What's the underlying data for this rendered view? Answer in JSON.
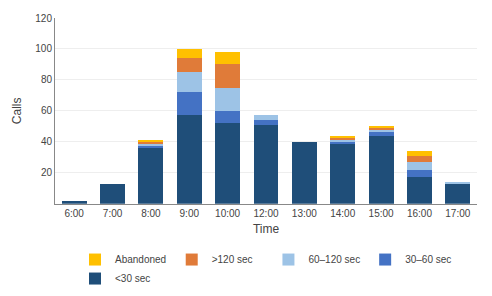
{
  "chart_data": {
    "type": "bar",
    "stacked": true,
    "xlabel": "Time",
    "ylabel": "Calls",
    "categories": [
      "6:00",
      "7:00",
      "8:00",
      "9:00",
      "10:00",
      "12:00",
      "13:00",
      "14:00",
      "15:00",
      "16:00",
      "17:00"
    ],
    "series": [
      {
        "name": "<30 sec",
        "color": "#1f4e79",
        "values": [
          2,
          13,
          36,
          57,
          52,
          51,
          40,
          39,
          44,
          17,
          13
        ]
      },
      {
        "name": "30–60 sec",
        "color": "#4472c4",
        "values": [
          0,
          0,
          1,
          15,
          8,
          3,
          0,
          1,
          2,
          5,
          0
        ]
      },
      {
        "name": "60–120 sec",
        "color": "#9dc3e6",
        "values": [
          0,
          0,
          2,
          13,
          15,
          3,
          0,
          1,
          2,
          5,
          1
        ]
      },
      {
        "name": ">120 sec",
        "color": "#e07b39",
        "values": [
          0,
          0,
          1,
          9,
          15,
          0,
          0,
          2,
          1,
          4,
          0
        ]
      },
      {
        "name": "Abandoned",
        "color": "#ffc000",
        "values": [
          0,
          0,
          1,
          6,
          8,
          0,
          0,
          1,
          1,
          3,
          0
        ]
      }
    ],
    "ylim": [
      0,
      120
    ],
    "yticks": [
      20,
      40,
      60,
      80,
      100,
      120
    ],
    "grid": true,
    "legend": "bottom"
  }
}
